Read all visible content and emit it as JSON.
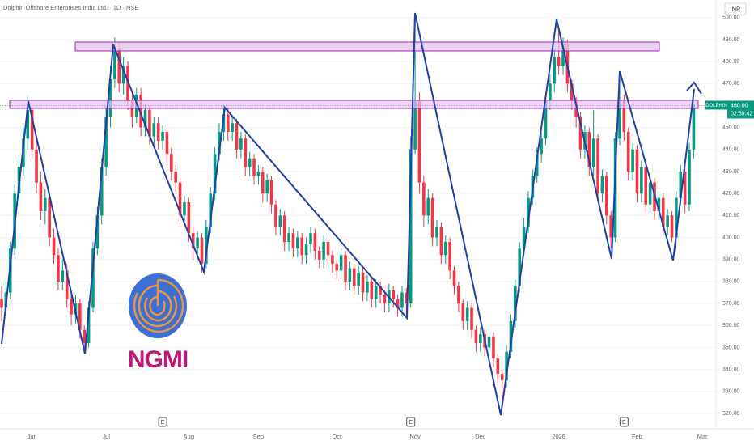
{
  "chart_data": {
    "type": "candlestick",
    "title": "Dolphin Offshore Enterprises India Ltd. · 1D · NSE",
    "currency": "INR",
    "symbol": "DOLPHIN",
    "last_price": {
      "value": 460,
      "label": "460.00"
    },
    "countdown": "02:59:42",
    "up_color": "#089981",
    "down_color": "#f23645",
    "grid": true,
    "ylim": [
      313,
      508
    ],
    "yticks": [
      {
        "value": 320,
        "label": "320.00"
      },
      {
        "value": 330,
        "label": "330.00"
      },
      {
        "value": 340,
        "label": "340.00"
      },
      {
        "value": 350,
        "label": "350.00"
      },
      {
        "value": 360,
        "label": "360.00"
      },
      {
        "value": 370,
        "label": "370.00"
      },
      {
        "value": 380,
        "label": "380.00"
      },
      {
        "value": 390,
        "label": "390.00"
      },
      {
        "value": 400,
        "label": "400.00"
      },
      {
        "value": 410,
        "label": "410.00"
      },
      {
        "value": 420,
        "label": "420.00"
      },
      {
        "value": 430,
        "label": "430.00"
      },
      {
        "value": 440,
        "label": "440.00"
      },
      {
        "value": 450,
        "label": "450.00"
      },
      {
        "value": 460,
        "label": "460.00"
      },
      {
        "value": 470,
        "label": "470.00"
      },
      {
        "value": 480,
        "label": "480.00"
      },
      {
        "value": 490,
        "label": "490.00"
      },
      {
        "value": 500,
        "label": "500.00"
      }
    ],
    "categories": [
      null,
      null,
      null,
      null,
      null,
      null,
      null,
      "Jun",
      null,
      null,
      null,
      null,
      null,
      null,
      null,
      null,
      null,
      null,
      null,
      null,
      null,
      null,
      null,
      null,
      "Jul",
      null,
      null,
      null,
      null,
      null,
      null,
      null,
      null,
      null,
      null,
      null,
      null,
      null,
      null,
      null,
      null,
      null,
      null,
      "Aug",
      null,
      null,
      null,
      null,
      null,
      null,
      null,
      null,
      null,
      null,
      null,
      null,
      null,
      null,
      null,
      "Sep",
      null,
      null,
      null,
      null,
      null,
      null,
      null,
      null,
      null,
      null,
      null,
      null,
      null,
      null,
      null,
      null,
      null,
      "Oct",
      null,
      null,
      null,
      null,
      null,
      null,
      null,
      null,
      null,
      null,
      null,
      null,
      null,
      null,
      null,
      null,
      null,
      "Nov",
      null,
      null,
      null,
      null,
      null,
      null,
      null,
      null,
      null,
      null,
      null,
      null,
      null,
      null,
      "Dec",
      null,
      null,
      null,
      null,
      null,
      null,
      null,
      null,
      null,
      null,
      null,
      null,
      null,
      null,
      null,
      null,
      null,
      "2026",
      null,
      null,
      null,
      null,
      null,
      null,
      null,
      null,
      null,
      null,
      null,
      null,
      null,
      null,
      null,
      null,
      null,
      "Feb",
      null,
      null,
      null,
      null,
      null,
      null,
      null,
      null,
      null,
      null,
      null,
      null,
      null,
      null,
      "Mar"
    ],
    "earnings": {
      "label": "E",
      "candles": [
        37,
        94,
        143
      ]
    },
    "open": [
      372,
      368,
      375,
      395,
      420,
      432,
      445,
      458,
      440,
      425,
      412,
      418,
      400,
      392,
      380,
      385,
      372,
      365,
      370,
      358,
      352,
      368,
      395,
      410,
      432,
      455,
      472,
      486,
      470,
      478,
      462,
      455,
      465,
      450,
      458,
      446,
      452,
      444,
      448,
      438,
      430,
      425,
      410,
      416,
      402,
      395,
      400,
      388,
      405,
      420,
      438,
      448,
      456,
      448,
      452,
      440,
      445,
      432,
      436,
      428,
      430,
      420,
      426,
      415,
      405,
      410,
      398,
      402,
      395,
      400,
      392,
      397,
      402,
      394,
      390,
      398,
      392,
      388,
      385,
      392,
      380,
      386,
      378,
      384,
      375,
      380,
      372,
      378,
      374,
      370,
      376,
      372,
      368,
      375,
      370,
      440,
      462,
      425,
      410,
      418,
      400,
      405,
      392,
      398,
      385,
      378,
      370,
      362,
      368,
      358,
      352,
      356,
      350,
      355,
      345,
      338,
      335,
      348,
      362,
      378,
      395,
      405,
      418,
      428,
      438,
      445,
      462,
      470,
      482,
      478,
      488,
      470,
      462,
      455,
      440,
      448,
      432,
      445,
      420,
      428,
      410,
      400,
      445,
      462,
      448,
      430,
      440,
      420,
      432,
      415,
      425,
      412,
      418,
      405,
      410,
      400,
      418,
      430,
      415,
      440,
      null,
      null
    ],
    "high": [
      378,
      380,
      398,
      424,
      436,
      450,
      464,
      462,
      444,
      430,
      422,
      421,
      404,
      395,
      390,
      388,
      376,
      374,
      372,
      360,
      371,
      398,
      414,
      436,
      460,
      478,
      491,
      489,
      482,
      480,
      466,
      468,
      468,
      461,
      460,
      455,
      455,
      451,
      450,
      441,
      433,
      427,
      419,
      418,
      405,
      403,
      402,
      408,
      423,
      441,
      452,
      461,
      459,
      455,
      454,
      448,
      447,
      439,
      438,
      433,
      432,
      429,
      428,
      417,
      413,
      412,
      405,
      404,
      403,
      402,
      400,
      405,
      404,
      396,
      401,
      400,
      394,
      390,
      395,
      394,
      389,
      388,
      387,
      386,
      383,
      382,
      381,
      380,
      376,
      379,
      378,
      374,
      378,
      377,
      446,
      500,
      466,
      428,
      422,
      420,
      408,
      407,
      401,
      400,
      387,
      380,
      372,
      371,
      370,
      360,
      359,
      358,
      358,
      357,
      347,
      340,
      351,
      365,
      381,
      398,
      409,
      421,
      431,
      441,
      448,
      466,
      474,
      486,
      495,
      491,
      490,
      472,
      464,
      457,
      451,
      450,
      458,
      447,
      431,
      430,
      412,
      448,
      470,
      465,
      450,
      443,
      442,
      435,
      434,
      428,
      427,
      421,
      420,
      413,
      412,
      421,
      433,
      432,
      443,
      462,
      null,
      null
    ],
    "low": [
      362,
      364,
      372,
      392,
      416,
      428,
      440,
      436,
      420,
      408,
      406,
      396,
      388,
      376,
      376,
      368,
      360,
      361,
      354,
      347,
      350,
      366,
      392,
      406,
      428,
      450,
      468,
      466,
      465,
      458,
      450,
      452,
      446,
      446,
      442,
      442,
      440,
      440,
      434,
      426,
      421,
      406,
      406,
      398,
      390,
      390,
      384,
      386,
      402,
      417,
      435,
      444,
      444,
      444,
      436,
      436,
      428,
      428,
      424,
      424,
      416,
      416,
      411,
      401,
      401,
      394,
      394,
      391,
      391,
      388,
      388,
      393,
      390,
      386,
      386,
      388,
      384,
      381,
      381,
      376,
      376,
      374,
      374,
      371,
      371,
      368,
      368,
      370,
      366,
      366,
      368,
      364,
      364,
      365,
      368,
      438,
      420,
      405,
      406,
      396,
      396,
      388,
      388,
      381,
      374,
      366,
      358,
      358,
      354,
      348,
      348,
      346,
      346,
      341,
      334,
      324,
      332,
      345,
      359,
      375,
      392,
      402,
      415,
      425,
      434,
      442,
      458,
      466,
      474,
      474,
      466,
      458,
      450,
      436,
      436,
      428,
      428,
      416,
      416,
      406,
      395,
      398,
      442,
      444,
      426,
      426,
      416,
      416,
      411,
      411,
      408,
      408,
      401,
      401,
      398,
      398,
      415,
      411,
      412,
      436,
      null,
      null
    ],
    "close": [
      368,
      375,
      395,
      420,
      432,
      445,
      458,
      440,
      425,
      412,
      418,
      400,
      392,
      380,
      385,
      372,
      365,
      370,
      358,
      352,
      368,
      395,
      410,
      432,
      455,
      472,
      486,
      470,
      478,
      462,
      455,
      465,
      450,
      458,
      446,
      452,
      444,
      448,
      438,
      430,
      425,
      410,
      416,
      402,
      395,
      400,
      388,
      405,
      420,
      438,
      448,
      456,
      448,
      452,
      440,
      445,
      432,
      436,
      428,
      430,
      420,
      426,
      415,
      405,
      410,
      398,
      402,
      395,
      400,
      392,
      397,
      402,
      394,
      390,
      398,
      392,
      388,
      385,
      392,
      380,
      386,
      378,
      384,
      375,
      380,
      372,
      378,
      374,
      370,
      376,
      372,
      368,
      375,
      370,
      440,
      462,
      425,
      410,
      418,
      400,
      405,
      392,
      398,
      385,
      378,
      370,
      362,
      368,
      358,
      352,
      356,
      350,
      355,
      345,
      338,
      335,
      348,
      362,
      378,
      395,
      405,
      418,
      428,
      438,
      445,
      462,
      470,
      482,
      478,
      488,
      470,
      462,
      455,
      440,
      448,
      432,
      445,
      420,
      428,
      410,
      400,
      445,
      462,
      448,
      430,
      440,
      420,
      432,
      415,
      425,
      412,
      418,
      405,
      410,
      400,
      418,
      430,
      415,
      440,
      460,
      null,
      null
    ]
  },
  "logo": {
    "text": "NGMI"
  }
}
